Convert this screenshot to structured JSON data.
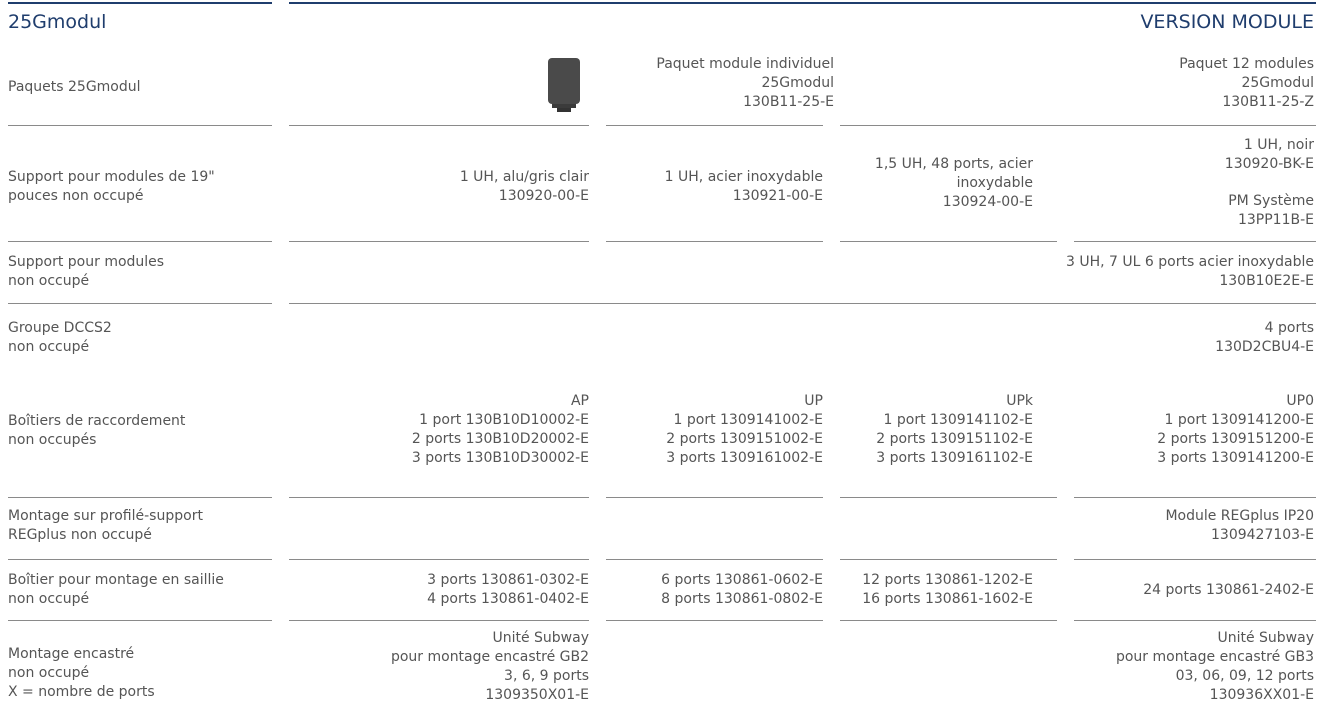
{
  "header": {
    "title": "25Gmodul",
    "version": "VERSION MODULE"
  },
  "rows": {
    "paquets": {
      "label": "Paquets 25Gmodul",
      "c2": [
        "Paquet module individuel",
        "25Gmodul",
        "130B11-25-E"
      ],
      "c4": [
        "Paquet 12 modules",
        "25Gmodul",
        "130B11-25-Z"
      ]
    },
    "support19": {
      "label": [
        "Support pour modules de 19\"",
        "pouces non occupé"
      ],
      "c1": [
        "1 UH, alu/gris clair",
        "130920-00-E"
      ],
      "c2": [
        "1 UH, acier inoxydable",
        "130921-00-E"
      ],
      "c3": [
        "1,5 UH, 48 ports, acier",
        "inoxydable",
        "130924-00-E"
      ],
      "c4a": [
        "1 UH, noir",
        "130920-BK-E"
      ],
      "c4b": [
        "PM Système",
        "13PP11B-E"
      ]
    },
    "support": {
      "label": [
        "Support pour modules",
        "non occupé"
      ],
      "c4": [
        "3 UH, 7 UL 6 ports acier inoxydable",
        "130B10E2E-E"
      ]
    },
    "dccs2": {
      "label": [
        "Groupe DCCS2",
        "non occupé"
      ],
      "c4": [
        "4 ports",
        "130D2CBU4-E"
      ]
    },
    "boitiers": {
      "label": [
        "Boîtiers de raccordement",
        "non occupés"
      ],
      "c1": [
        "AP",
        "1 port 130B10D10002-E",
        "2 ports 130B10D20002-E",
        "3 ports 130B10D30002-E"
      ],
      "c2": [
        "UP",
        "1 port 1309141002-E",
        "2 ports 1309151002-E",
        "3 ports 1309161002-E"
      ],
      "c3": [
        "UPk",
        "1 port 1309141102-E",
        "2 ports 1309151102-E",
        "3 ports 1309161102-E"
      ],
      "c4": [
        "UP0",
        "1 port 1309141200-E",
        "2 ports 1309151200-E",
        "3 ports 1309141200-E"
      ]
    },
    "regplus": {
      "label": [
        "Montage sur profilé-support",
        "REGplus non occupé"
      ],
      "c4": [
        "Module REGplus IP20",
        "1309427103-E"
      ]
    },
    "saillie": {
      "label": [
        "Boîtier pour montage en saillie",
        "non occupé"
      ],
      "c1": [
        "3 ports 130861-0302-E",
        "4 ports 130861-0402-E"
      ],
      "c2": [
        "6 ports 130861-0602-E",
        "8 ports 130861-0802-E"
      ],
      "c3": [
        "12 ports 130861-1202-E",
        "16 ports 130861-1602-E"
      ],
      "c4": [
        "24 ports 130861-2402-E"
      ]
    },
    "encastre": {
      "label": [
        "Montage encastré",
        "non occupé",
        "X = nombre de ports"
      ],
      "c1": [
        "Unité Subway",
        "pour montage encastré GB2",
        "3, 6, 9 ports",
        "1309350X01-E"
      ],
      "c4": [
        "Unité Subway",
        "pour montage encastré GB3",
        "03, 06, 09, 12 ports",
        "130936XX01-E"
      ]
    }
  },
  "colors": {
    "accent": "#1f3d6d",
    "text": "#555555",
    "rule": "#8a8a8a"
  },
  "icons": {
    "product": "module-jack-icon"
  }
}
